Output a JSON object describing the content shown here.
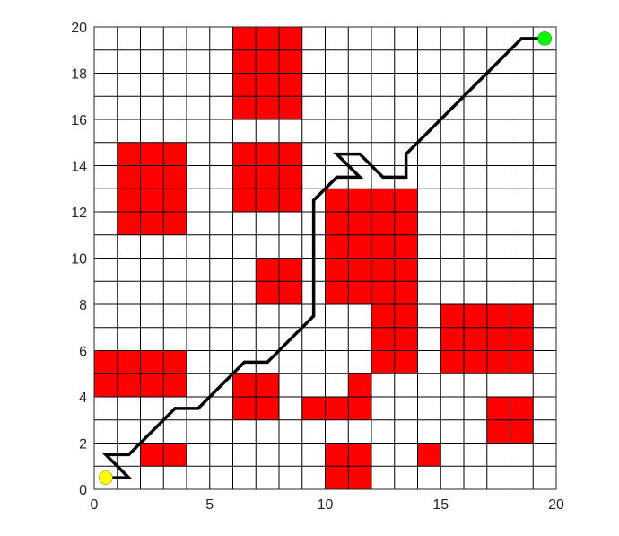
{
  "chart_data": {
    "type": "grid-path",
    "title": "",
    "xlabel": "",
    "ylabel": "",
    "xlim": [
      0,
      20
    ],
    "ylim": [
      0,
      20
    ],
    "grid": true,
    "grid_step": 1,
    "x_ticks": [
      "0",
      "5",
      "10",
      "15",
      "20"
    ],
    "y_ticks": [
      "0",
      "2",
      "4",
      "6",
      "8",
      "10",
      "12",
      "14",
      "16",
      "18",
      "20"
    ],
    "obstacle_color": "#ff0000",
    "obstacles": [
      [
        6,
        16
      ],
      [
        7,
        16
      ],
      [
        8,
        16
      ],
      [
        6,
        17
      ],
      [
        7,
        17
      ],
      [
        8,
        17
      ],
      [
        6,
        18
      ],
      [
        7,
        18
      ],
      [
        8,
        18
      ],
      [
        6,
        19
      ],
      [
        7,
        19
      ],
      [
        8,
        19
      ],
      [
        1,
        11
      ],
      [
        2,
        11
      ],
      [
        3,
        11
      ],
      [
        1,
        12
      ],
      [
        2,
        12
      ],
      [
        3,
        12
      ],
      [
        1,
        13
      ],
      [
        2,
        13
      ],
      [
        3,
        13
      ],
      [
        1,
        14
      ],
      [
        2,
        14
      ],
      [
        3,
        14
      ],
      [
        6,
        12
      ],
      [
        7,
        12
      ],
      [
        8,
        12
      ],
      [
        6,
        13
      ],
      [
        7,
        13
      ],
      [
        8,
        13
      ],
      [
        6,
        14
      ],
      [
        7,
        14
      ],
      [
        8,
        14
      ],
      [
        10,
        8
      ],
      [
        11,
        8
      ],
      [
        12,
        8
      ],
      [
        13,
        8
      ],
      [
        10,
        9
      ],
      [
        11,
        9
      ],
      [
        12,
        9
      ],
      [
        13,
        9
      ],
      [
        10,
        10
      ],
      [
        11,
        10
      ],
      [
        12,
        10
      ],
      [
        13,
        10
      ],
      [
        10,
        11
      ],
      [
        11,
        11
      ],
      [
        12,
        11
      ],
      [
        13,
        11
      ],
      [
        10,
        12
      ],
      [
        11,
        12
      ],
      [
        12,
        12
      ],
      [
        13,
        12
      ],
      [
        12,
        5
      ],
      [
        13,
        5
      ],
      [
        12,
        6
      ],
      [
        13,
        6
      ],
      [
        12,
        7
      ],
      [
        13,
        7
      ],
      [
        7,
        8
      ],
      [
        8,
        8
      ],
      [
        7,
        9
      ],
      [
        8,
        9
      ],
      [
        15,
        5
      ],
      [
        16,
        5
      ],
      [
        17,
        5
      ],
      [
        18,
        5
      ],
      [
        15,
        6
      ],
      [
        16,
        6
      ],
      [
        17,
        6
      ],
      [
        18,
        6
      ],
      [
        15,
        7
      ],
      [
        16,
        7
      ],
      [
        17,
        7
      ],
      [
        18,
        7
      ],
      [
        0,
        4
      ],
      [
        1,
        4
      ],
      [
        2,
        4
      ],
      [
        3,
        4
      ],
      [
        0,
        5
      ],
      [
        1,
        5
      ],
      [
        2,
        5
      ],
      [
        3,
        5
      ],
      [
        6,
        3
      ],
      [
        7,
        3
      ],
      [
        6,
        4
      ],
      [
        7,
        4
      ],
      [
        9,
        3
      ],
      [
        10,
        3
      ],
      [
        11,
        3
      ],
      [
        11,
        4
      ],
      [
        17,
        2
      ],
      [
        18,
        2
      ],
      [
        17,
        3
      ],
      [
        18,
        3
      ],
      [
        2,
        1
      ],
      [
        3,
        1
      ],
      [
        10,
        0
      ],
      [
        11,
        0
      ],
      [
        10,
        1
      ],
      [
        11,
        1
      ],
      [
        14,
        1
      ]
    ],
    "path_color": "#000000",
    "path": [
      [
        0.5,
        0.5
      ],
      [
        1.5,
        0.5
      ],
      [
        0.5,
        1.5
      ],
      [
        1.5,
        1.5
      ],
      [
        2.5,
        2.5
      ],
      [
        3.5,
        3.5
      ],
      [
        4.5,
        3.5
      ],
      [
        6.5,
        5.5
      ],
      [
        7.5,
        5.5
      ],
      [
        9.5,
        7.5
      ],
      [
        9.5,
        12.5
      ],
      [
        10.5,
        13.5
      ],
      [
        11.5,
        13.5
      ],
      [
        10.5,
        14.5
      ],
      [
        11.5,
        14.5
      ],
      [
        12.5,
        13.5
      ],
      [
        13.5,
        13.5
      ],
      [
        13.5,
        14.5
      ],
      [
        18.5,
        19.5
      ],
      [
        19.5,
        19.5
      ]
    ],
    "start": {
      "x": 0.5,
      "y": 0.5,
      "color": "#ffff00"
    },
    "goal": {
      "x": 19.5,
      "y": 19.5,
      "color": "#00ff00"
    }
  }
}
